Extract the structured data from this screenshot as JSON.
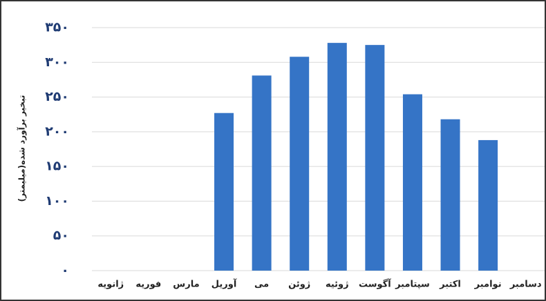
{
  "chart_data": {
    "type": "bar",
    "y_label": "تبخیر برآورد شده(میلیمتر)",
    "categories": [
      "ژانویه",
      "فوریه",
      "مارس",
      "آوریل",
      "می",
      "ژوئن",
      "ژوئیه",
      "آگوست",
      "سپتامبر",
      "اکتبر",
      "نوامبر",
      "دسامبر"
    ],
    "values": [
      0,
      0,
      0,
      227,
      281,
      308,
      328,
      325,
      254,
      218,
      188,
      0
    ],
    "color": "#3574c6",
    "ylim": [
      0,
      350
    ],
    "yticks": [
      {
        "value": 0,
        "label": "۰"
      },
      {
        "value": 50,
        "label": "۵۰"
      },
      {
        "value": 100,
        "label": "۱۰۰"
      },
      {
        "value": 150,
        "label": "۱۵۰"
      },
      {
        "value": 200,
        "label": "۲۰۰"
      },
      {
        "value": 250,
        "label": "۲۵۰"
      },
      {
        "value": 300,
        "label": "۳۰۰"
      },
      {
        "value": 350,
        "label": "۳۵۰"
      }
    ],
    "grid": true
  }
}
